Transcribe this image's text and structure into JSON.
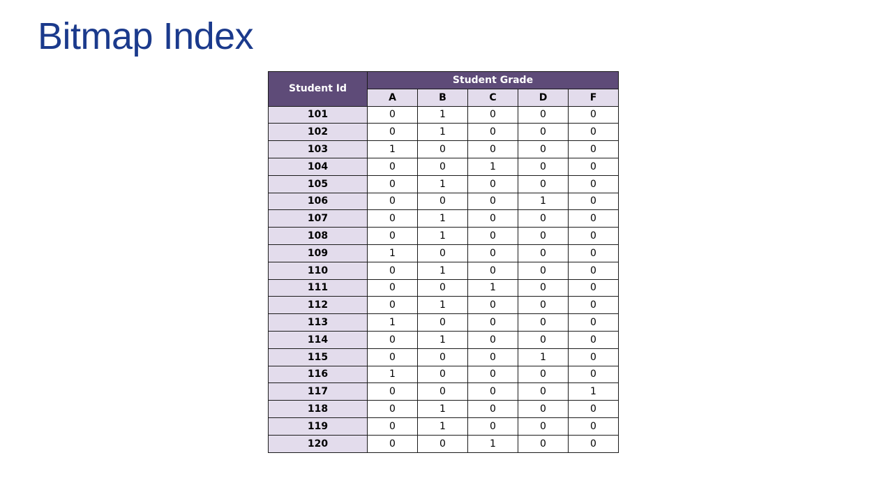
{
  "title": "Bitmap Index",
  "table": {
    "id_header": "Student Id",
    "group_header": "Student Grade",
    "grade_headers": [
      "A",
      "B",
      "C",
      "D",
      "F"
    ],
    "rows": [
      {
        "id": "101",
        "bits": [
          "0",
          "1",
          "0",
          "0",
          "0"
        ]
      },
      {
        "id": "102",
        "bits": [
          "0",
          "1",
          "0",
          "0",
          "0"
        ]
      },
      {
        "id": "103",
        "bits": [
          "1",
          "0",
          "0",
          "0",
          "0"
        ]
      },
      {
        "id": "104",
        "bits": [
          "0",
          "0",
          "1",
          "0",
          "0"
        ]
      },
      {
        "id": "105",
        "bits": [
          "0",
          "1",
          "0",
          "0",
          "0"
        ]
      },
      {
        "id": "106",
        "bits": [
          "0",
          "0",
          "0",
          "1",
          "0"
        ]
      },
      {
        "id": "107",
        "bits": [
          "0",
          "1",
          "0",
          "0",
          "0"
        ]
      },
      {
        "id": "108",
        "bits": [
          "0",
          "1",
          "0",
          "0",
          "0"
        ]
      },
      {
        "id": "109",
        "bits": [
          "1",
          "0",
          "0",
          "0",
          "0"
        ]
      },
      {
        "id": "110",
        "bits": [
          "0",
          "1",
          "0",
          "0",
          "0"
        ]
      },
      {
        "id": "111",
        "bits": [
          "0",
          "0",
          "1",
          "0",
          "0"
        ]
      },
      {
        "id": "112",
        "bits": [
          "0",
          "1",
          "0",
          "0",
          "0"
        ]
      },
      {
        "id": "113",
        "bits": [
          "1",
          "0",
          "0",
          "0",
          "0"
        ]
      },
      {
        "id": "114",
        "bits": [
          "0",
          "1",
          "0",
          "0",
          "0"
        ]
      },
      {
        "id": "115",
        "bits": [
          "0",
          "0",
          "0",
          "1",
          "0"
        ]
      },
      {
        "id": "116",
        "bits": [
          "1",
          "0",
          "0",
          "0",
          "0"
        ]
      },
      {
        "id": "117",
        "bits": [
          "0",
          "0",
          "0",
          "0",
          "1"
        ]
      },
      {
        "id": "118",
        "bits": [
          "0",
          "1",
          "0",
          "0",
          "0"
        ]
      },
      {
        "id": "119",
        "bits": [
          "0",
          "1",
          "0",
          "0",
          "0"
        ]
      },
      {
        "id": "120",
        "bits": [
          "0",
          "0",
          "1",
          "0",
          "0"
        ]
      }
    ]
  },
  "colors": {
    "title": "#1b3a8c",
    "header_dark": "#5e4b78",
    "header_light": "#e3dcec",
    "border": "#1a1a1a"
  }
}
